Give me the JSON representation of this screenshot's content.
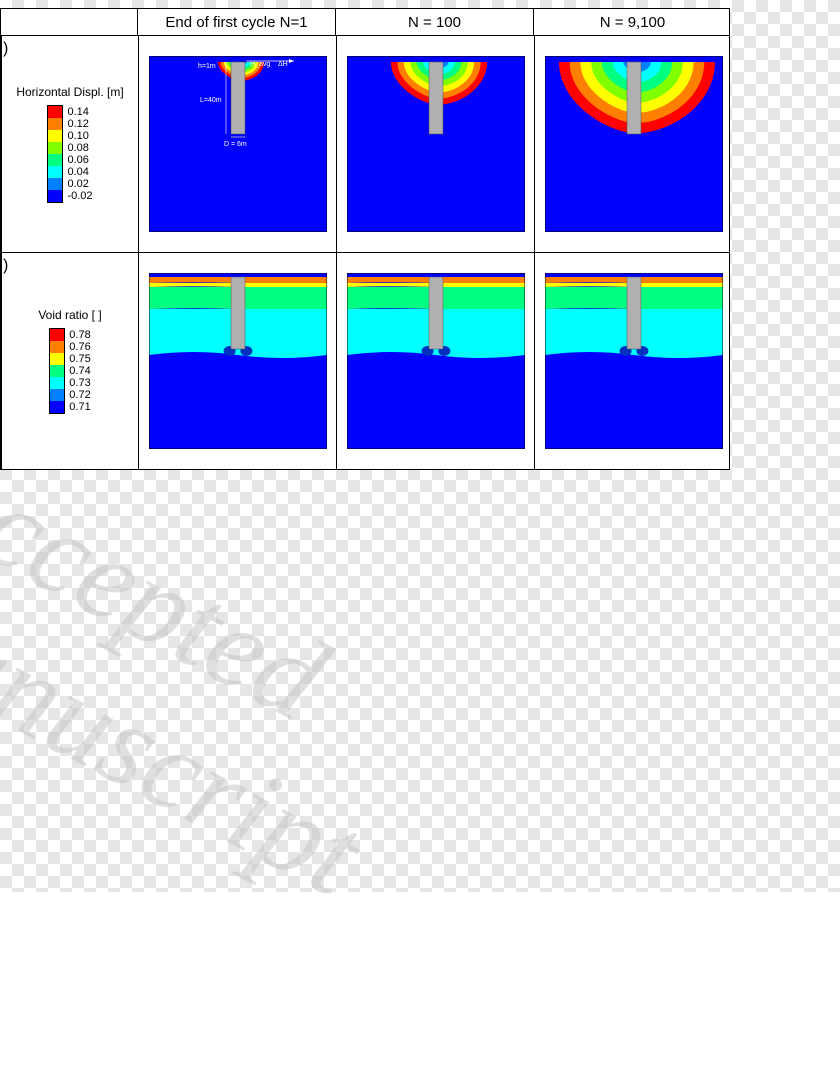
{
  "watermark_text": "Accepted Manuscript",
  "columns": [
    {
      "label": "End of first cycle N=1"
    },
    {
      "label": "N = 100"
    },
    {
      "label": "N = 9,100"
    }
  ],
  "rows": [
    {
      "paren": ")",
      "legend_title": "Horizontal Displ. [m]",
      "scale_labels": [
        "0.14",
        "0.12",
        "0.10",
        "0.08",
        "0.06",
        "0.04",
        "0.02",
        "-0.02"
      ],
      "scale_colors": [
        "#ff0000",
        "#ff8000",
        "#ffff00",
        "#80ff00",
        "#00ff80",
        "#00ffff",
        "#0080ff",
        "#0000ff"
      ],
      "background": "#0000ff",
      "pile_color": "#b0b0b0",
      "pile": {
        "w": 14,
        "h": 72,
        "y": 6
      },
      "extent": [
        20,
        45,
        75
      ],
      "annotations": {
        "h": "h=1m",
        "H": "H_avg",
        "dH": "ΔH",
        "L": "L=40m",
        "D": "D = 6m"
      }
    },
    {
      "paren": ")",
      "legend_title": "Void ratio [ ]",
      "scale_labels": [
        "0.78",
        "0.76",
        "0.75",
        "0.74",
        "0.73",
        "0.72",
        "0.71"
      ],
      "scale_colors": [
        "#ff0000",
        "#ff8000",
        "#ffff00",
        "#00ff80",
        "#00ffff",
        "#0080ff",
        "#0000ff"
      ],
      "background": "#0000ff",
      "pile_color": "#b0b0b0",
      "pile": {
        "w": 14,
        "h": 72,
        "y": 4
      },
      "layers": [
        {
          "y": 0,
          "h": 6,
          "c": "#ff8000"
        },
        {
          "y": 6,
          "h": 4,
          "c": "#ffff00"
        },
        {
          "y": 10,
          "h": 22,
          "c": "#00ff80"
        },
        {
          "y": 32,
          "h": 46,
          "c": "#00ffff"
        }
      ]
    }
  ],
  "panel": {
    "w": 178,
    "h": 176
  }
}
